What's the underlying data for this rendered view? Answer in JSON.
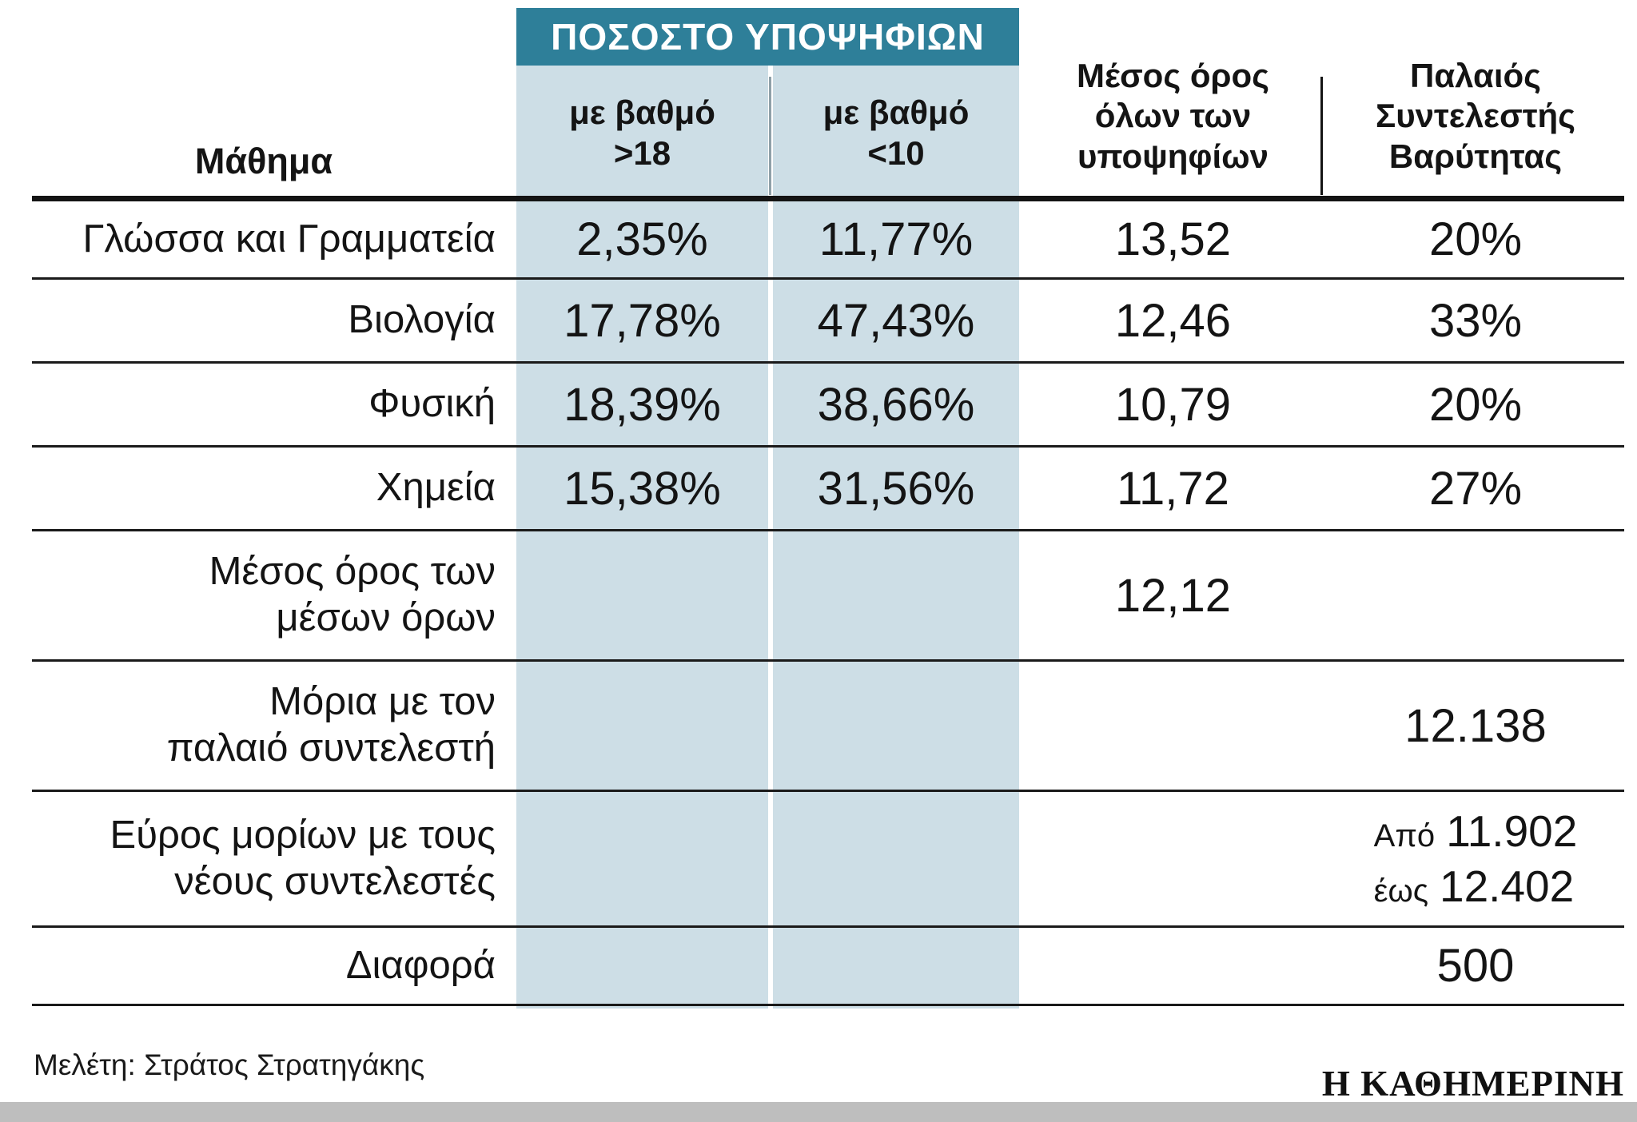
{
  "chart_data": {
    "type": "table",
    "title": "ΠΟΣΟΣΤΟ ΥΠΟΨΗΦΙΩΝ",
    "columns": [
      "Μάθημα",
      "με βαθμό >18",
      "με βαθμό <10",
      "Μέσος όρος όλων των υποψηφίων",
      "Παλαιός Συντελεστής Βαρύτητας"
    ],
    "rows": [
      [
        "Γλώσσα και Γραμματεία",
        "2,35%",
        "11,77%",
        "13,52",
        "20%"
      ],
      [
        "Βιολογία",
        "17,78%",
        "47,43%",
        "12,46",
        "33%"
      ],
      [
        "Φυσική",
        "18,39%",
        "38,66%",
        "10,79",
        "20%"
      ],
      [
        "Χημεία",
        "15,38%",
        "31,56%",
        "11,72",
        "27%"
      ],
      [
        "Μέσος όρος των μέσων όρων",
        "",
        "",
        "12,12",
        ""
      ],
      [
        "Μόρια με τον παλαιό συντελεστή",
        "",
        "",
        "",
        "12.138"
      ],
      [
        "Εύρος μορίων με τους νέους συντελεστές",
        "",
        "",
        "",
        "Από 11.902 έως 12.402"
      ],
      [
        "Διαφορά",
        "",
        "",
        "",
        "500"
      ]
    ]
  },
  "table": {
    "group_header": "ΠΟΣΟΣΤΟ ΥΠΟΨΗΦΙΩΝ",
    "headers": {
      "subject": "Μάθημα",
      "gt18": "με βαθμό\n>18",
      "lt10": "με βαθμό\n<10",
      "avg": "Μέσος όρος\nόλων των\nυποψηφίων",
      "old": "Παλαιός\nΣυντελεστής\nΒαρύτητας"
    },
    "rows": [
      {
        "label": "Γλώσσα και Γραμματεία",
        "gt18": "2,35%",
        "lt10": "11,77%",
        "avg": "13,52",
        "old": "20%"
      },
      {
        "label": "Βιολογία",
        "gt18": "17,78%",
        "lt10": "47,43%",
        "avg": "12,46",
        "old": "33%"
      },
      {
        "label": "Φυσική",
        "gt18": "18,39%",
        "lt10": "38,66%",
        "avg": "10,79",
        "old": "20%"
      },
      {
        "label": "Χημεία",
        "gt18": "15,38%",
        "lt10": "31,56%",
        "avg": "11,72",
        "old": "27%"
      },
      {
        "label": "Μέσος όρος των\nμέσων όρων",
        "gt18": "",
        "lt10": "",
        "avg": "12,12",
        "old": ""
      },
      {
        "label": "Μόρια με τον\nπαλαιό συντελεστή",
        "gt18": "",
        "lt10": "",
        "avg": "",
        "old": "12.138"
      },
      {
        "label": "Εύρος μορίων με τους\nνέους συντελεστές",
        "gt18": "",
        "lt10": "",
        "avg": "",
        "old_range": {
          "from_label": "Από",
          "from_value": "11.902",
          "to_label": "έως",
          "to_value": "12.402"
        }
      },
      {
        "label": "Διαφορά",
        "gt18": "",
        "lt10": "",
        "avg": "",
        "old": "500"
      }
    ]
  },
  "footer": {
    "credit": "Μελέτη: Στράτος Στρατηγάκης",
    "logo": "Η ΚΑΘΗΜΕΡΙΝΗ"
  },
  "colors": {
    "teal": "#2e7f99",
    "light_blue": "#cddee6",
    "line": "#141414",
    "bottom_bar": "#bebebe"
  }
}
